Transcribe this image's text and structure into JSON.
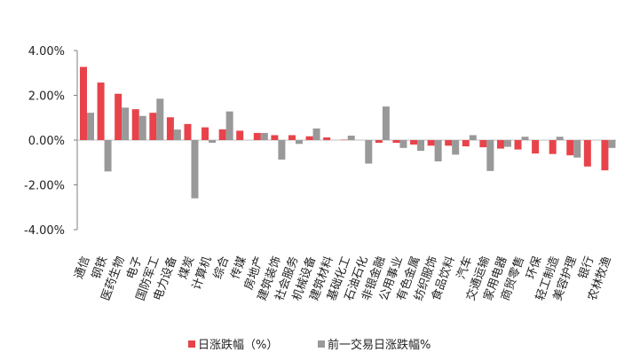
{
  "chart_data": {
    "type": "bar",
    "categories": [
      "通信",
      "钢铁",
      "医药生物",
      "电子",
      "国防军工",
      "电力设备",
      "煤炭",
      "计算机",
      "综合",
      "传媒",
      "房地产",
      "建筑装饰",
      "社会服务",
      "机械设备",
      "建筑材料",
      "基础化工",
      "石油石化",
      "非银金融",
      "公用事业",
      "有色金属",
      "纺织服饰",
      "食品饮料",
      "汽车",
      "交通运输",
      "家用电器",
      "商贸零售",
      "环保",
      "轻工制造",
      "美容护理",
      "银行",
      "农林牧渔"
    ],
    "series": [
      {
        "name": "日涨跌幅（%）",
        "color": "#e8434b",
        "values": [
          3.27,
          2.57,
          2.07,
          1.38,
          1.22,
          1.02,
          0.72,
          0.57,
          0.48,
          0.42,
          0.32,
          0.22,
          0.22,
          0.17,
          0.12,
          0.02,
          0.0,
          -0.12,
          -0.12,
          -0.2,
          -0.25,
          -0.25,
          -0.28,
          -0.32,
          -0.38,
          -0.42,
          -0.6,
          -0.62,
          -0.68,
          -1.18,
          -1.35
        ]
      },
      {
        "name": "前一交易日涨跌幅%",
        "color": "#999999",
        "values": [
          1.22,
          -1.4,
          1.45,
          1.08,
          1.85,
          0.47,
          -2.6,
          -0.12,
          1.28,
          0.0,
          0.32,
          -0.87,
          -0.17,
          0.52,
          0.0,
          0.2,
          -1.05,
          1.5,
          -0.35,
          -0.48,
          -0.95,
          -0.65,
          0.22,
          -1.38,
          -0.3,
          0.15,
          0.0,
          0.15,
          -0.78,
          0.0,
          -0.35
        ]
      }
    ],
    "yticks": [
      "4.00%",
      "2.00%",
      "0.00%",
      "-2.00%",
      "-4.00%"
    ],
    "ylim": [
      -4,
      4
    ],
    "grid": false,
    "legend_position": "bottom-center"
  }
}
